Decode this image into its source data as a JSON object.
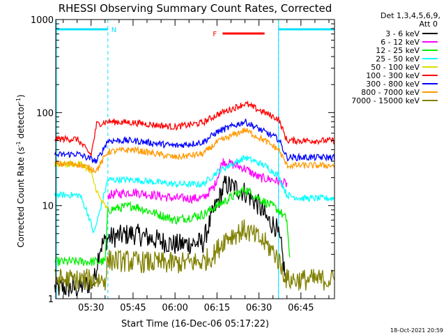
{
  "chart_data": {
    "type": "line",
    "title": "RHESSI Observing Summary Count Rates, Corrected",
    "xlabel": "Start Time (16-Dec-06 05:17:22)",
    "ylabel_main": "Corrected Count Rate (s",
    "ylabel_sup1": "-1",
    "ylabel_mid": " detector",
    "ylabel_sup2": "-1",
    "ylabel_end": ")",
    "yscale": "log",
    "ylim": [
      1,
      1000
    ],
    "xlim": [
      "05:17:22",
      "06:57:00"
    ],
    "x_ticks": [
      "05:30",
      "05:45",
      "06:00",
      "06:15",
      "06:30",
      "06:45"
    ],
    "y_ticks": [
      "1",
      "10",
      "100",
      "1000"
    ],
    "detectors_label": "Det 1,3,4,5,6,9,",
    "attenuator_label": "Att 0",
    "timestamp": "18-Oct-2021 20:59",
    "flags": [
      {
        "label": "N",
        "color": "#00e0ff",
        "segments": [
          [
            "05:17:22",
            "05:36:00"
          ],
          [
            "06:37:00",
            "06:57:00"
          ]
        ],
        "boundary_times": [
          "05:36:00",
          "06:37:00"
        ]
      },
      {
        "label": "F",
        "color": "#ff0000",
        "segments": [
          [
            "06:17:00",
            "06:32:00"
          ]
        ]
      }
    ],
    "legend_position": "right",
    "series": [
      {
        "name": "3 - 6 keV",
        "color": "#000000",
        "x": [
          "05:17",
          "05:25",
          "05:31",
          "05:33",
          "05:36",
          "05:45",
          "06:00",
          "06:10",
          "06:14",
          "06:18",
          "06:25",
          "06:30",
          "06:33",
          "06:36",
          "06:38",
          "06:40"
        ],
        "values": [
          1.3,
          1.3,
          1.5,
          3.5,
          4.5,
          5,
          3.8,
          4,
          9,
          17,
          14,
          10,
          7,
          6,
          3.5,
          1.3
        ]
      },
      {
        "name": "6 - 12 keV",
        "color": "#ff00ff",
        "x": [
          "05:36",
          "05:45",
          "06:00",
          "06:10",
          "06:14",
          "06:17",
          "06:25",
          "06:30",
          "06:35",
          "06:40"
        ],
        "values": [
          13,
          14,
          12,
          12,
          16,
          30,
          25,
          20,
          19,
          17
        ]
      },
      {
        "name": "12 - 25 keV",
        "color": "#00ee00",
        "x": [
          "05:17",
          "05:35",
          "05:36",
          "05:45",
          "06:00",
          "06:10",
          "06:15",
          "06:25",
          "06:32",
          "06:37",
          "06:40",
          "06:41"
        ],
        "values": [
          2.5,
          2.5,
          9,
          10,
          7,
          8,
          10,
          15,
          11,
          9,
          7,
          2.5
        ]
      },
      {
        "name": "25 - 50 keV",
        "color": "#00ffff",
        "x": [
          "05:17",
          "05:26",
          "05:29",
          "05:31",
          "05:36",
          "05:45",
          "06:00",
          "06:10",
          "06:15",
          "06:25",
          "06:32",
          "06:37",
          "06:40",
          "06:45",
          "06:57"
        ],
        "values": [
          13,
          13,
          8,
          5,
          19,
          19,
          17,
          17,
          23,
          33,
          27,
          21,
          13,
          12,
          12
        ]
      },
      {
        "name": "50 - 100 keV",
        "color": "#dddd00",
        "x": [
          "05:17",
          "05:27",
          "05:30",
          "05:33",
          "05:36"
        ],
        "values": [
          28,
          28,
          22,
          12,
          9
        ]
      },
      {
        "name": "100 - 300 keV",
        "color": "#ff0000",
        "x": [
          "05:17",
          "05:25",
          "05:30",
          "05:32",
          "05:36",
          "05:45",
          "06:00",
          "06:10",
          "06:15",
          "06:25",
          "06:32",
          "06:37",
          "06:40",
          "06:57"
        ],
        "values": [
          52,
          52,
          35,
          75,
          80,
          78,
          70,
          78,
          95,
          125,
          100,
          85,
          50,
          50
        ]
      },
      {
        "name": "300 - 800 keV",
        "color": "#0000ff",
        "x": [
          "05:17",
          "05:25",
          "05:32",
          "05:36",
          "05:45",
          "06:00",
          "06:10",
          "06:15",
          "06:25",
          "06:32",
          "06:37",
          "06:40",
          "06:57"
        ],
        "values": [
          35,
          36,
          30,
          50,
          50,
          44,
          48,
          62,
          80,
          62,
          52,
          33,
          33
        ]
      },
      {
        "name": "800 - 7000 keV",
        "color": "#ff9900",
        "x": [
          "05:17",
          "05:25",
          "05:32",
          "05:36",
          "05:45",
          "06:00",
          "06:10",
          "06:15",
          "06:25",
          "06:32",
          "06:37",
          "06:40",
          "06:57"
        ],
        "values": [
          28,
          28,
          24,
          38,
          40,
          33,
          36,
          48,
          65,
          50,
          40,
          27,
          27
        ]
      },
      {
        "name": "7000 - 15000 keV",
        "color": "#808000",
        "x": [
          "05:17",
          "05:35",
          "05:36",
          "05:45",
          "06:00",
          "06:10",
          "06:14",
          "06:18",
          "06:25",
          "06:32",
          "06:36",
          "06:40",
          "06:57"
        ],
        "values": [
          1.6,
          1.6,
          2.6,
          2.5,
          2.4,
          2.5,
          3,
          4.5,
          5.5,
          4,
          3,
          1.6,
          1.6
        ]
      }
    ]
  }
}
